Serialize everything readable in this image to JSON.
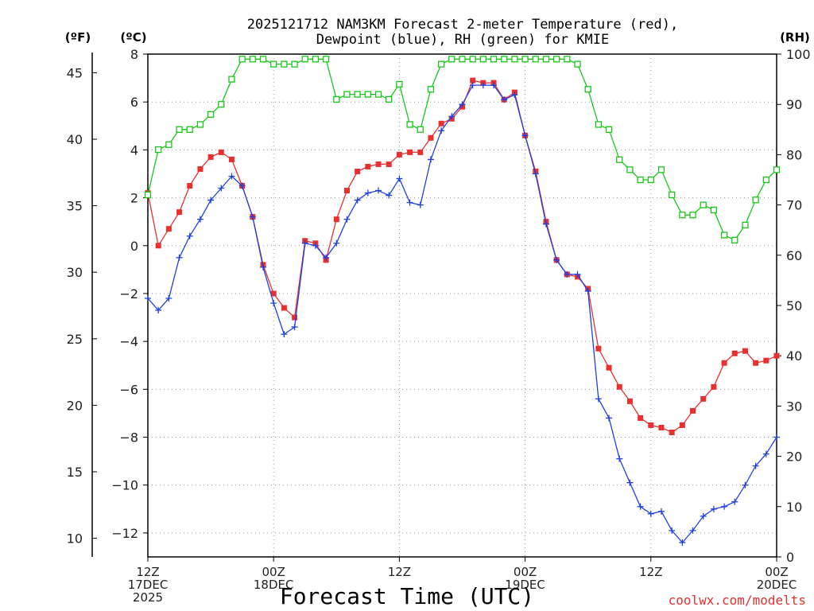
{
  "chart_data": {
    "type": "line",
    "title_line1": "2025121712 NAM3KM Forecast 2-meter Temperature (red),",
    "title_line2": "Dewpoint (blue), RH (green) for KMIE",
    "xlabel": "Forecast Time (UTC)",
    "credit": "coolwx.com/modelts",
    "units": {
      "fahrenheit": "(ºF)",
      "celsius": "(ºC)",
      "rh": "(RH)"
    },
    "x_range_hours": [
      0,
      60
    ],
    "celsius_range": [
      -13,
      8
    ],
    "celsius_ticks": [
      "8",
      "6",
      "4",
      "2",
      "0",
      "−2",
      "−4",
      "−6",
      "−8",
      "−10",
      "−12"
    ],
    "fahrenheit_ticks": [
      "45",
      "40",
      "35",
      "30",
      "25",
      "20",
      "15",
      "10"
    ],
    "rh_range": [
      0,
      100
    ],
    "rh_ticks": [
      "100",
      "90",
      "80",
      "70",
      "60",
      "50",
      "40",
      "30",
      "20",
      "10",
      "0"
    ],
    "x_ticks": [
      {
        "hour": 0,
        "lines": [
          "12Z",
          "17DEC",
          "2025"
        ]
      },
      {
        "hour": 12,
        "lines": [
          "00Z",
          "18DEC"
        ]
      },
      {
        "hour": 24,
        "lines": [
          "12Z"
        ]
      },
      {
        "hour": 36,
        "lines": [
          "00Z",
          "19DEC"
        ]
      },
      {
        "hour": 48,
        "lines": [
          "12Z"
        ]
      },
      {
        "hour": 60,
        "lines": [
          "00Z",
          "20DEC"
        ]
      }
    ],
    "series": [
      {
        "name": "Temperature",
        "unit": "C",
        "color": "#e83030",
        "marker": "square",
        "values": [
          2.2,
          0.0,
          0.7,
          1.4,
          2.5,
          3.2,
          3.7,
          3.9,
          3.6,
          2.5,
          1.2,
          -0.8,
          -2.0,
          -2.6,
          -3.0,
          0.2,
          0.1,
          -0.6,
          1.1,
          2.3,
          3.1,
          3.3,
          3.4,
          3.4,
          3.8,
          3.9,
          3.9,
          4.5,
          5.1,
          5.3,
          5.8,
          6.9,
          6.8,
          6.8,
          6.1,
          6.4,
          4.6,
          3.1,
          1.0,
          -0.6,
          -1.2,
          -1.3,
          -1.8,
          -4.3,
          -5.1,
          -5.9,
          -6.5,
          -7.2,
          -7.5,
          -7.6,
          -7.8,
          -7.5,
          -6.9,
          -6.4,
          -5.9,
          -4.9,
          -4.5,
          -4.4,
          -4.9,
          -4.8,
          -4.6
        ]
      },
      {
        "name": "Dewpoint",
        "unit": "C",
        "color": "#2040e0",
        "marker": "plus",
        "values": [
          -2.2,
          -2.7,
          -2.2,
          -0.5,
          0.4,
          1.1,
          1.9,
          2.4,
          2.9,
          2.5,
          1.2,
          -0.9,
          -2.4,
          -3.7,
          -3.4,
          0.1,
          0.0,
          -0.5,
          0.1,
          1.1,
          1.9,
          2.2,
          2.3,
          2.1,
          2.8,
          1.8,
          1.7,
          3.6,
          4.8,
          5.4,
          5.9,
          6.7,
          6.7,
          6.7,
          6.1,
          6.3,
          4.6,
          3.0,
          0.9,
          -0.6,
          -1.2,
          -1.2,
          -1.9,
          -6.4,
          -7.2,
          -8.9,
          -9.9,
          -10.9,
          -11.2,
          -11.1,
          -11.9,
          -12.4,
          -11.9,
          -11.3,
          -11.0,
          -10.9,
          -10.7,
          -10.0,
          -9.2,
          -8.7,
          -8.0
        ]
      },
      {
        "name": "RH",
        "unit": "%",
        "color": "#18c818",
        "marker": "open-square",
        "values": [
          72,
          81,
          82,
          85,
          85,
          86,
          88,
          90,
          95,
          99,
          99,
          99,
          98,
          98,
          98,
          99,
          99,
          99,
          91,
          92,
          92,
          92,
          92,
          91,
          94,
          86,
          85,
          93,
          98,
          99,
          99,
          99,
          99,
          99,
          99,
          99,
          99,
          99,
          99,
          99,
          99,
          98,
          93,
          86,
          85,
          79,
          77,
          75,
          75,
          77,
          72,
          68,
          68,
          70,
          69,
          64,
          63,
          66,
          71,
          75,
          77
        ]
      }
    ]
  }
}
